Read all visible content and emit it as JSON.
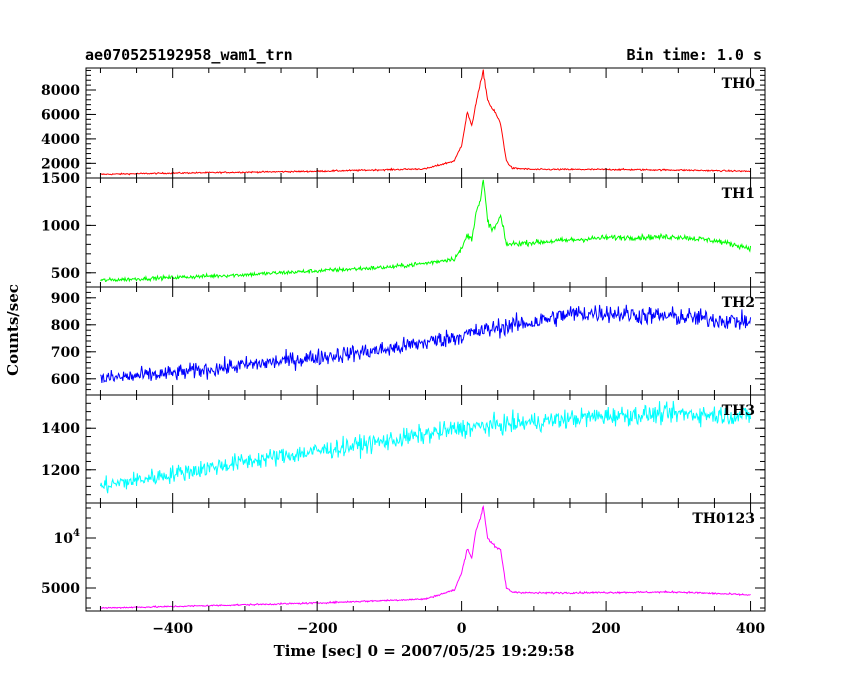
{
  "header": {
    "left_title": "ae070525192958_wam1_trn",
    "right_title": "Bin time: 1.0 s"
  },
  "axes": {
    "xlabel": "Time [sec] 0 = 2007/05/25 19:29:58",
    "ylabel": "Counts/sec"
  },
  "chart_data": [
    {
      "type": "line",
      "name": "TH0",
      "color": "#ff0000",
      "xlim": [
        -520,
        420
      ],
      "ylim": [
        800,
        9800
      ],
      "yticks": [
        2000,
        4000,
        6000,
        8000
      ],
      "ytick_labels": [
        "2000",
        "4000",
        "6000",
        "8000"
      ],
      "profile": [
        [
          -500,
          1100
        ],
        [
          -400,
          1200
        ],
        [
          -200,
          1350
        ],
        [
          -50,
          1550
        ],
        [
          -10,
          2200
        ],
        [
          0,
          3500
        ],
        [
          8,
          6200
        ],
        [
          14,
          5000
        ],
        [
          20,
          7000
        ],
        [
          26,
          8500
        ],
        [
          30,
          9500
        ],
        [
          36,
          7200
        ],
        [
          42,
          6500
        ],
        [
          48,
          6000
        ],
        [
          54,
          5200
        ],
        [
          62,
          2200
        ],
        [
          70,
          1600
        ],
        [
          100,
          1500
        ],
        [
          200,
          1500
        ],
        [
          300,
          1450
        ],
        [
          400,
          1350
        ]
      ],
      "noise": 60
    },
    {
      "type": "line",
      "name": "TH1",
      "color": "#00ff00",
      "xlim": [
        -520,
        420
      ],
      "ylim": [
        350,
        1500
      ],
      "yticks": [
        500,
        1000,
        1500
      ],
      "ytick_labels": [
        "500",
        "1000",
        "1500"
      ],
      "profile": [
        [
          -500,
          420
        ],
        [
          -400,
          450
        ],
        [
          -300,
          480
        ],
        [
          -200,
          520
        ],
        [
          -100,
          560
        ],
        [
          -50,
          600
        ],
        [
          -10,
          650
        ],
        [
          0,
          750
        ],
        [
          8,
          900
        ],
        [
          14,
          850
        ],
        [
          20,
          1150
        ],
        [
          26,
          1250
        ],
        [
          30,
          1480
        ],
        [
          36,
          1050
        ],
        [
          42,
          950
        ],
        [
          48,
          1000
        ],
        [
          54,
          1100
        ],
        [
          62,
          800
        ],
        [
          100,
          820
        ],
        [
          200,
          870
        ],
        [
          300,
          880
        ],
        [
          350,
          840
        ],
        [
          400,
          760
        ]
      ],
      "noise": 22
    },
    {
      "type": "line",
      "name": "TH2",
      "color": "#0000ff",
      "xlim": [
        -520,
        420
      ],
      "ylim": [
        540,
        940
      ],
      "yticks": [
        600,
        700,
        800,
        900
      ],
      "ytick_labels": [
        "600",
        "700",
        "800",
        "900"
      ],
      "profile": [
        [
          -500,
          600
        ],
        [
          -400,
          620
        ],
        [
          -300,
          650
        ],
        [
          -200,
          680
        ],
        [
          -100,
          710
        ],
        [
          0,
          760
        ],
        [
          50,
          790
        ],
        [
          100,
          810
        ],
        [
          150,
          840
        ],
        [
          200,
          845
        ],
        [
          250,
          835
        ],
        [
          300,
          830
        ],
        [
          350,
          820
        ],
        [
          400,
          810
        ]
      ],
      "noise": 32
    },
    {
      "type": "line",
      "name": "TH3",
      "color": "#00ffff",
      "xlim": [
        -520,
        420
      ],
      "ylim": [
        1040,
        1560
      ],
      "yticks": [
        1200,
        1400
      ],
      "ytick_labels": [
        "1200",
        "1400"
      ],
      "profile": [
        [
          -500,
          1120
        ],
        [
          -400,
          1180
        ],
        [
          -300,
          1240
        ],
        [
          -200,
          1290
        ],
        [
          -100,
          1340
        ],
        [
          0,
          1400
        ],
        [
          100,
          1430
        ],
        [
          200,
          1460
        ],
        [
          300,
          1470
        ],
        [
          400,
          1460
        ]
      ],
      "noise": 45
    },
    {
      "type": "line",
      "name": "TH0123",
      "color": "#ff00ff",
      "xlim": [
        -520,
        420
      ],
      "ylim": [
        2700,
        13500
      ],
      "yticks": [
        5000,
        10000
      ],
      "ytick_labels": [
        "5000",
        "10^4"
      ],
      "profile": [
        [
          -500,
          3000
        ],
        [
          -400,
          3150
        ],
        [
          -200,
          3500
        ],
        [
          -50,
          3900
        ],
        [
          -10,
          4800
        ],
        [
          0,
          6500
        ],
        [
          8,
          9000
        ],
        [
          14,
          8000
        ],
        [
          20,
          10800
        ],
        [
          26,
          12000
        ],
        [
          30,
          13200
        ],
        [
          36,
          10000
        ],
        [
          42,
          9500
        ],
        [
          48,
          9000
        ],
        [
          54,
          8800
        ],
        [
          62,
          5000
        ],
        [
          70,
          4600
        ],
        [
          100,
          4500
        ],
        [
          200,
          4550
        ],
        [
          300,
          4600
        ],
        [
          400,
          4300
        ]
      ],
      "noise": 80
    }
  ],
  "x_axis": {
    "ticks": [
      -400,
      -200,
      0,
      200,
      400
    ],
    "tick_labels": [
      "−400",
      "−200",
      "0",
      "200",
      "400"
    ]
  }
}
